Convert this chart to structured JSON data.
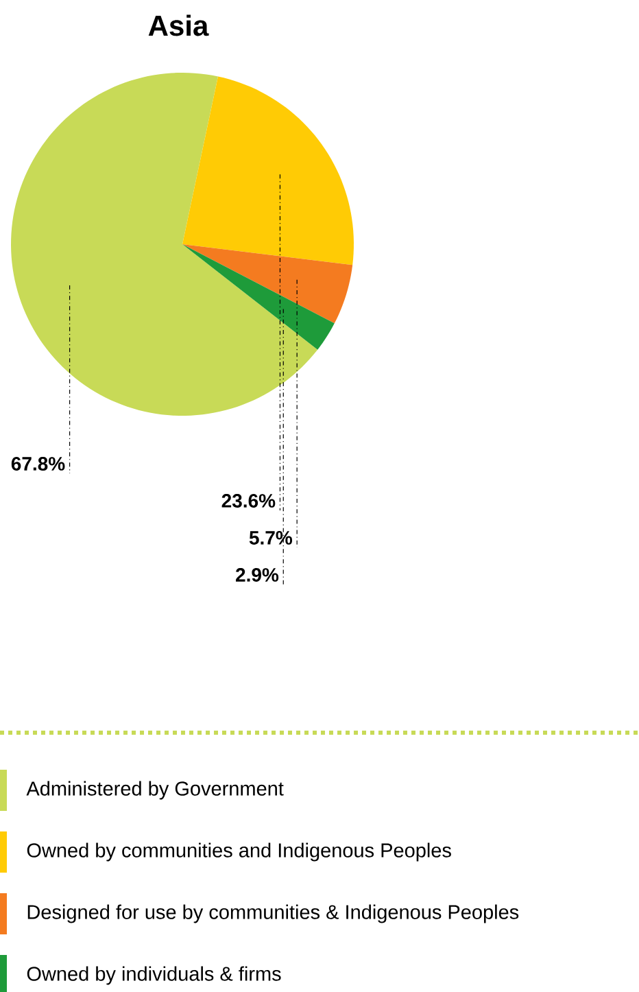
{
  "chart_data": {
    "type": "pie",
    "title": "Asia",
    "categories": [
      "Administered by Government",
      "Owned by communities and Indigenous Peoples",
      "Designed for use by communities & Indigenous Peoples",
      "Owned by individuals & firms"
    ],
    "values": [
      67.8,
      23.6,
      5.7,
      2.9
    ],
    "colors": [
      "#c8da57",
      "#ffcb05",
      "#f47b20",
      "#1e9b3a"
    ],
    "value_labels": [
      "67.8%",
      "23.6%",
      "5.7%",
      "2.9%"
    ],
    "legend": "bottom"
  }
}
